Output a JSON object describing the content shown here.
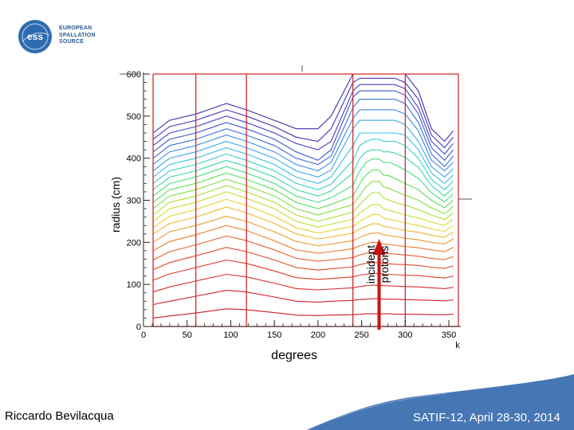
{
  "logo": {
    "line1": "EUROPEAN",
    "line2": "SPALLATION",
    "line3": "SOURCE",
    "mark": "ess"
  },
  "footer": {
    "author": "Riccardo Bevilacqua",
    "conference": "SATIF-12, April 28-30, 2014"
  },
  "colors": {
    "frame": "#cc2b2b",
    "arrow": "#cc1111",
    "wave": "#3d6fb0"
  },
  "chart_data": {
    "type": "line",
    "xlabel": "degrees",
    "ylabel": "radius (cm)",
    "annotation": {
      "line1": "incident",
      "line2": "protons",
      "x": 270
    },
    "corner_label": "k",
    "xlim": [
      0,
      360
    ],
    "ylim": [
      0,
      600
    ],
    "xticks": [
      0,
      50,
      100,
      150,
      200,
      250,
      300,
      350
    ],
    "yticks": [
      0,
      100,
      200,
      300,
      400,
      500,
      600
    ],
    "vertical_lines_x": [
      11,
      60,
      118,
      240,
      300
    ],
    "contour_x": [
      11,
      30,
      60,
      95,
      118,
      150,
      175,
      200,
      215,
      240,
      248,
      255,
      262,
      270,
      275,
      282,
      288,
      300,
      315,
      330,
      345,
      355
    ],
    "contours": [
      {
        "color": "#3a2ea8",
        "y": [
          460,
          490,
          505,
          530,
          515,
          490,
          470,
          470,
          500,
          600,
          600,
          600,
          600,
          600,
          600,
          600,
          600,
          600,
          560,
          470,
          440,
          465
        ]
      },
      {
        "color": "#4433b8",
        "y": [
          445,
          475,
          490,
          515,
          500,
          475,
          450,
          440,
          470,
          580,
          590,
          590,
          590,
          590,
          590,
          590,
          590,
          580,
          540,
          455,
          425,
          450
        ]
      },
      {
        "color": "#4a3fc6",
        "y": [
          430,
          460,
          475,
          500,
          485,
          460,
          435,
          420,
          440,
          560,
          575,
          575,
          575,
          575,
          575,
          575,
          575,
          565,
          520,
          440,
          410,
          435
        ]
      },
      {
        "color": "#3f55d0",
        "y": [
          415,
          445,
          460,
          485,
          470,
          445,
          415,
          395,
          420,
          545,
          560,
          560,
          560,
          560,
          560,
          560,
          560,
          550,
          505,
          425,
          395,
          420
        ]
      },
      {
        "color": "#3a6ee0",
        "y": [
          400,
          430,
          445,
          470,
          455,
          430,
          400,
          385,
          405,
          520,
          540,
          540,
          540,
          540,
          540,
          540,
          540,
          530,
          485,
          410,
          380,
          405
        ]
      },
      {
        "color": "#3b8ae6",
        "y": [
          385,
          415,
          430,
          455,
          440,
          415,
          385,
          370,
          390,
          495,
          515,
          515,
          515,
          515,
          515,
          515,
          515,
          505,
          465,
          395,
          370,
          390
        ]
      },
      {
        "color": "#3aa6e8",
        "y": [
          370,
          400,
          415,
          440,
          425,
          400,
          370,
          355,
          372,
          470,
          490,
          490,
          490,
          490,
          490,
          490,
          490,
          480,
          440,
          380,
          355,
          375
        ]
      },
      {
        "color": "#36c0e0",
        "y": [
          355,
          385,
          400,
          425,
          410,
          385,
          355,
          340,
          355,
          430,
          460,
          460,
          460,
          460,
          460,
          460,
          460,
          455,
          420,
          365,
          340,
          360
        ]
      },
      {
        "color": "#34d0c8",
        "y": [
          340,
          370,
          385,
          410,
          395,
          370,
          340,
          325,
          338,
          395,
          430,
          440,
          445,
          445,
          440,
          440,
          440,
          430,
          400,
          350,
          325,
          345
        ]
      },
      {
        "color": "#3ad8a4",
        "y": [
          325,
          355,
          370,
          395,
          380,
          355,
          325,
          310,
          322,
          365,
          400,
          415,
          420,
          420,
          415,
          415,
          412,
          402,
          378,
          335,
          310,
          330
        ]
      },
      {
        "color": "#45dc80",
        "y": [
          310,
          340,
          355,
          380,
          365,
          340,
          310,
          295,
          306,
          335,
          370,
          390,
          398,
          398,
          390,
          390,
          385,
          372,
          352,
          318,
          296,
          315
        ]
      },
      {
        "color": "#5ade55",
        "y": [
          295,
          325,
          340,
          365,
          350,
          325,
          295,
          280,
          290,
          310,
          340,
          360,
          372,
          372,
          360,
          358,
          352,
          340,
          325,
          300,
          282,
          300
        ]
      },
      {
        "color": "#80e040",
        "y": [
          280,
          310,
          325,
          350,
          335,
          310,
          280,
          265,
          274,
          290,
          312,
          332,
          345,
          345,
          332,
          328,
          322,
          312,
          300,
          282,
          268,
          285
        ]
      },
      {
        "color": "#a8e034",
        "y": [
          265,
          295,
          310,
          335,
          320,
          295,
          265,
          250,
          258,
          272,
          290,
          305,
          318,
          318,
          305,
          300,
          295,
          288,
          278,
          265,
          254,
          270
        ]
      },
      {
        "color": "#cadc2e",
        "y": [
          250,
          280,
          295,
          320,
          305,
          280,
          250,
          236,
          243,
          255,
          270,
          280,
          290,
          290,
          280,
          276,
          272,
          265,
          258,
          248,
          240,
          255
        ]
      },
      {
        "color": "#e6d02c",
        "y": [
          235,
          262,
          278,
          302,
          288,
          262,
          235,
          222,
          228,
          238,
          250,
          258,
          266,
          266,
          258,
          255,
          252,
          246,
          240,
          232,
          226,
          240
        ]
      },
      {
        "color": "#f0b82c",
        "y": [
          220,
          245,
          260,
          284,
          270,
          245,
          220,
          208,
          213,
          222,
          232,
          238,
          244,
          244,
          238,
          236,
          233,
          228,
          224,
          217,
          212,
          225
        ]
      },
      {
        "color": "#f09a2c",
        "y": [
          200,
          225,
          240,
          262,
          250,
          225,
          202,
          192,
          196,
          204,
          212,
          218,
          222,
          222,
          218,
          216,
          214,
          210,
          206,
          200,
          196,
          208
        ]
      },
      {
        "color": "#ec7c2c",
        "y": [
          180,
          202,
          218,
          240,
          228,
          204,
          182,
          174,
          178,
          185,
          192,
          196,
          200,
          200,
          196,
          195,
          193,
          190,
          187,
          182,
          178,
          188
        ]
      },
      {
        "color": "#e8602c",
        "y": [
          158,
          178,
          194,
          215,
          204,
          182,
          162,
          155,
          158,
          164,
          170,
          174,
          177,
          177,
          174,
          173,
          172,
          170,
          167,
          162,
          159,
          166
        ]
      },
      {
        "color": "#e4482c",
        "y": [
          135,
          152,
          168,
          188,
          178,
          158,
          140,
          134,
          137,
          142,
          147,
          150,
          152,
          152,
          150,
          149,
          148,
          147,
          145,
          141,
          138,
          144
        ]
      },
      {
        "color": "#e0382c",
        "y": [
          110,
          125,
          140,
          158,
          150,
          132,
          116,
          112,
          114,
          118,
          122,
          124,
          126,
          126,
          124,
          124,
          123,
          122,
          121,
          118,
          115,
          120
        ]
      },
      {
        "color": "#dc2c2c",
        "y": [
          82,
          94,
          108,
          124,
          118,
          103,
          90,
          87,
          89,
          92,
          95,
          97,
          98,
          98,
          97,
          97,
          96,
          95,
          94,
          92,
          90,
          93
        ]
      },
      {
        "color": "#d4202a",
        "y": [
          52,
          60,
          72,
          86,
          82,
          70,
          60,
          58,
          60,
          62,
          64,
          65,
          66,
          66,
          65,
          65,
          65,
          64,
          63,
          62,
          61,
          63
        ]
      },
      {
        "color": "#cc1a26",
        "y": [
          20,
          25,
          32,
          42,
          40,
          33,
          27,
          26,
          27,
          28,
          29,
          30,
          30,
          30,
          30,
          30,
          29,
          29,
          29,
          28,
          28,
          29
        ]
      }
    ]
  }
}
